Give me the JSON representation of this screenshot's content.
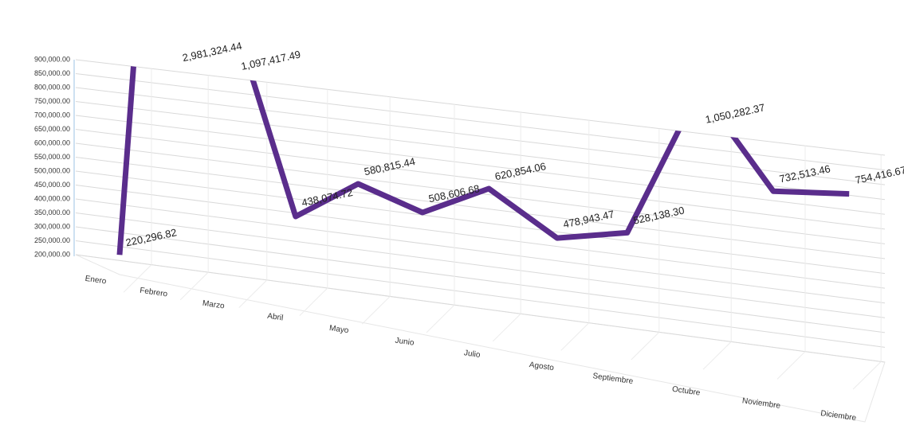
{
  "chart_data": {
    "type": "line",
    "categories": [
      "Enero",
      "Febrero",
      "Marzo",
      "Abril",
      "Mayo",
      "Junio",
      "Julio",
      "Agosto",
      "Septiembre",
      "Octubre",
      "Noviembre",
      "Diciembre"
    ],
    "values": [
      220296.82,
      2981324.44,
      1097417.49,
      438074.72,
      580815.44,
      508606.68,
      620854.06,
      478943.47,
      528138.3,
      1050282.37,
      732513.46,
      754416.67
    ],
    "value_labels": [
      "220,296.82",
      "2,981,324.44",
      "1,097,417.49",
      "438,074.72",
      "580,815.44",
      "508,606.68",
      "620,854.06",
      "478,943.47",
      "528,138.30",
      "1,050,282.37",
      "732,513.46",
      "754,416.67"
    ],
    "color": "#5a2d8c",
    "ylim": [
      200000,
      900000
    ],
    "yticks": [
      {
        "value": 200000,
        "label": "200,000.00"
      },
      {
        "value": 250000,
        "label": "250,000.00"
      },
      {
        "value": 300000,
        "label": "300,000.00"
      },
      {
        "value": 350000,
        "label": "350,000.00"
      },
      {
        "value": 400000,
        "label": "400,000.00"
      },
      {
        "value": 450000,
        "label": "450,000.00"
      },
      {
        "value": 500000,
        "label": "500,000.00"
      },
      {
        "value": 550000,
        "label": "550,000.00"
      },
      {
        "value": 600000,
        "label": "600,000.00"
      },
      {
        "value": 650000,
        "label": "650,000.00"
      },
      {
        "value": 700000,
        "label": "700,000.00"
      },
      {
        "value": 750000,
        "label": "750,000.00"
      },
      {
        "value": 800000,
        "label": "800,000.00"
      },
      {
        "value": 850000,
        "label": "850,000.00"
      },
      {
        "value": 900000,
        "label": "900,000.00"
      }
    ],
    "grid": true
  }
}
